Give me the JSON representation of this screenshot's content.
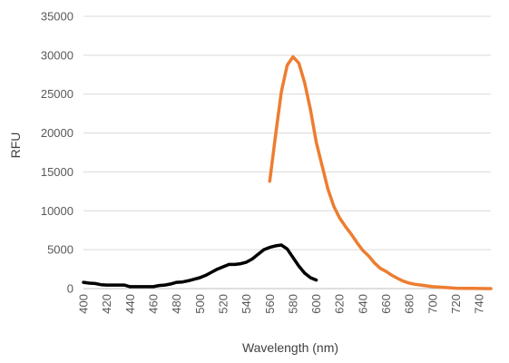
{
  "chart_data": {
    "type": "line",
    "title": "",
    "xlabel": "Wavelength (nm)",
    "ylabel": "RFU",
    "xlim": [
      400,
      750
    ],
    "ylim": [
      0,
      35000
    ],
    "x_ticks": [
      400,
      420,
      440,
      460,
      480,
      500,
      520,
      540,
      560,
      580,
      600,
      620,
      640,
      660,
      680,
      700,
      720,
      740
    ],
    "y_ticks": [
      0,
      5000,
      10000,
      15000,
      20000,
      25000,
      30000,
      35000
    ],
    "grid": "horizontal",
    "legend": "none",
    "series": [
      {
        "color": "#000000",
        "points": [
          [
            400,
            800
          ],
          [
            405,
            700
          ],
          [
            410,
            650
          ],
          [
            415,
            500
          ],
          [
            420,
            450
          ],
          [
            425,
            450
          ],
          [
            430,
            450
          ],
          [
            435,
            450
          ],
          [
            440,
            250
          ],
          [
            445,
            250
          ],
          [
            450,
            250
          ],
          [
            455,
            250
          ],
          [
            460,
            250
          ],
          [
            465,
            400
          ],
          [
            470,
            450
          ],
          [
            475,
            600
          ],
          [
            480,
            800
          ],
          [
            485,
            850
          ],
          [
            490,
            1000
          ],
          [
            495,
            1200
          ],
          [
            500,
            1400
          ],
          [
            505,
            1700
          ],
          [
            510,
            2100
          ],
          [
            515,
            2500
          ],
          [
            520,
            2800
          ],
          [
            525,
            3100
          ],
          [
            530,
            3100
          ],
          [
            535,
            3200
          ],
          [
            540,
            3400
          ],
          [
            545,
            3800
          ],
          [
            550,
            4400
          ],
          [
            555,
            5000
          ],
          [
            560,
            5300
          ],
          [
            565,
            5500
          ],
          [
            570,
            5600
          ],
          [
            575,
            5100
          ],
          [
            580,
            4000
          ],
          [
            585,
            2900
          ],
          [
            590,
            2000
          ],
          [
            595,
            1400
          ],
          [
            600,
            1100
          ]
        ]
      },
      {
        "color": "#ed7d31",
        "points": [
          [
            560,
            13800
          ],
          [
            565,
            19700
          ],
          [
            570,
            25300
          ],
          [
            575,
            28700
          ],
          [
            580,
            29800
          ],
          [
            585,
            29000
          ],
          [
            590,
            26500
          ],
          [
            595,
            23000
          ],
          [
            600,
            18800
          ],
          [
            605,
            15800
          ],
          [
            610,
            12800
          ],
          [
            615,
            10600
          ],
          [
            620,
            9100
          ],
          [
            625,
            8000
          ],
          [
            630,
            7000
          ],
          [
            635,
            5900
          ],
          [
            640,
            4900
          ],
          [
            645,
            4200
          ],
          [
            650,
            3300
          ],
          [
            655,
            2600
          ],
          [
            660,
            2200
          ],
          [
            665,
            1700
          ],
          [
            670,
            1300
          ],
          [
            675,
            950
          ],
          [
            680,
            700
          ],
          [
            685,
            550
          ],
          [
            690,
            450
          ],
          [
            695,
            350
          ],
          [
            700,
            250
          ],
          [
            705,
            200
          ],
          [
            710,
            150
          ],
          [
            715,
            100
          ],
          [
            720,
            50
          ],
          [
            725,
            40
          ],
          [
            730,
            30
          ],
          [
            735,
            20
          ],
          [
            740,
            10
          ],
          [
            745,
            5
          ],
          [
            750,
            0
          ]
        ]
      }
    ]
  }
}
